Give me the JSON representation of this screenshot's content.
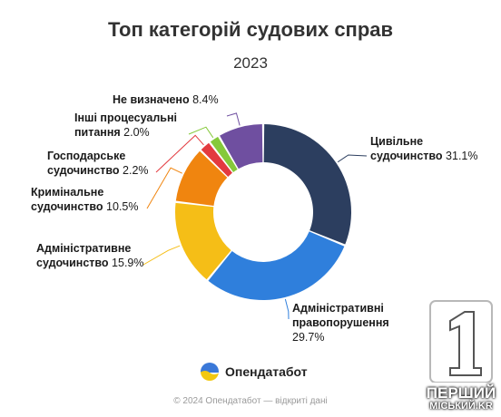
{
  "header": {
    "title": "Топ категорій судових справ",
    "subtitle": "2023"
  },
  "chart_data": {
    "type": "pie",
    "variant": "donut",
    "title": "Топ категорій судових справ",
    "subtitle": "2023",
    "unit": "%",
    "slices": [
      {
        "label": "Цивільне судочинство",
        "value": 31.1,
        "value_label": "31.1%",
        "color": "#2c3e5f"
      },
      {
        "label": "Адміністративні правопорушення",
        "value": 29.7,
        "value_label": "29.7%",
        "color": "#2f7fdc"
      },
      {
        "label": "Адміністративне судочинство",
        "value": 15.9,
        "value_label": "15.9%",
        "color": "#f5be17"
      },
      {
        "label": "Кримінальне судочинство",
        "value": 10.5,
        "value_label": "10.5%",
        "color": "#f0850f"
      },
      {
        "label": "Господарське судочинство",
        "value": 2.2,
        "value_label": "2.2%",
        "color": "#e33a3f"
      },
      {
        "label": "Інші процесуальні питання",
        "value": 2.0,
        "value_label": "2.0%",
        "color": "#85c93a"
      },
      {
        "label": "Не визначено",
        "value": 8.4,
        "value_label": "8.4%",
        "color": "#6f4fa0"
      }
    ]
  },
  "branding": {
    "name": "Опендатабот",
    "logo_icon": "opendatabot-logo-icon",
    "colors": {
      "top": "#3a78d8",
      "bottom": "#f2c811"
    }
  },
  "footer": {
    "text": "© 2024 Опендатабот — відкриті дані"
  },
  "watermark": {
    "number": "1",
    "line1": "ПЕРШИЙ",
    "line2": "МІСЬКИЙ.KR"
  }
}
